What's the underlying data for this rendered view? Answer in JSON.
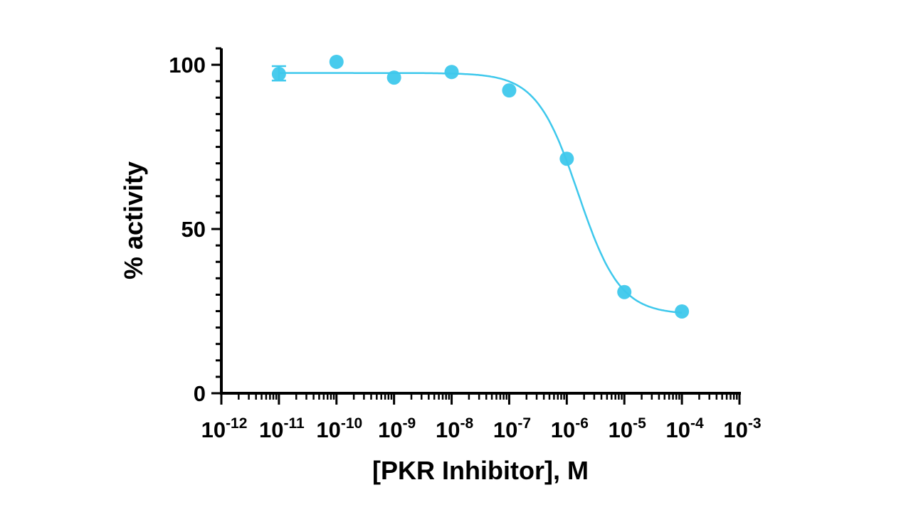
{
  "chart_data": {
    "type": "scatter",
    "title": "",
    "xlabel": "[PKR Inhibitor], M",
    "ylabel": "% activity",
    "x_scale": "log",
    "xlim": [
      1e-12,
      0.001
    ],
    "ylim": [
      0,
      105
    ],
    "x_tick_labels": [
      {
        "base": "10",
        "exp": "-12"
      },
      {
        "base": "10",
        "exp": "-11"
      },
      {
        "base": "10",
        "exp": "-10"
      },
      {
        "base": "10",
        "exp": "-9"
      },
      {
        "base": "10",
        "exp": "-8"
      },
      {
        "base": "10",
        "exp": "-7"
      },
      {
        "base": "10",
        "exp": "-6"
      },
      {
        "base": "10",
        "exp": "-5"
      },
      {
        "base": "10",
        "exp": "-4"
      },
      {
        "base": "10",
        "exp": "-3"
      }
    ],
    "y_ticks": [
      0,
      50,
      100
    ],
    "y_tick_labels": [
      "0",
      "50",
      "100"
    ],
    "y_minor_step": 5,
    "grid": false,
    "color": "#3ec8ec",
    "points": [
      {
        "x": 1e-11,
        "y": 97.2,
        "err_low": 95.2,
        "err_high": 99.6
      },
      {
        "x": 1e-10,
        "y": 100.9
      },
      {
        "x": 1e-09,
        "y": 96.1
      },
      {
        "x": 1e-08,
        "y": 97.8
      },
      {
        "x": 1e-07,
        "y": 92.2
      },
      {
        "x": 1e-06,
        "y": 71.4
      },
      {
        "x": 1e-05,
        "y": 30.8
      },
      {
        "x": 0.0001,
        "y": 24.9
      }
    ],
    "fit": {
      "model": "four-parameter logistic",
      "top": 97.5,
      "bottom": 24,
      "log_ic50": -5.8,
      "hill_slope": 1.2,
      "x_range": [
        1e-11,
        0.0001
      ]
    }
  }
}
